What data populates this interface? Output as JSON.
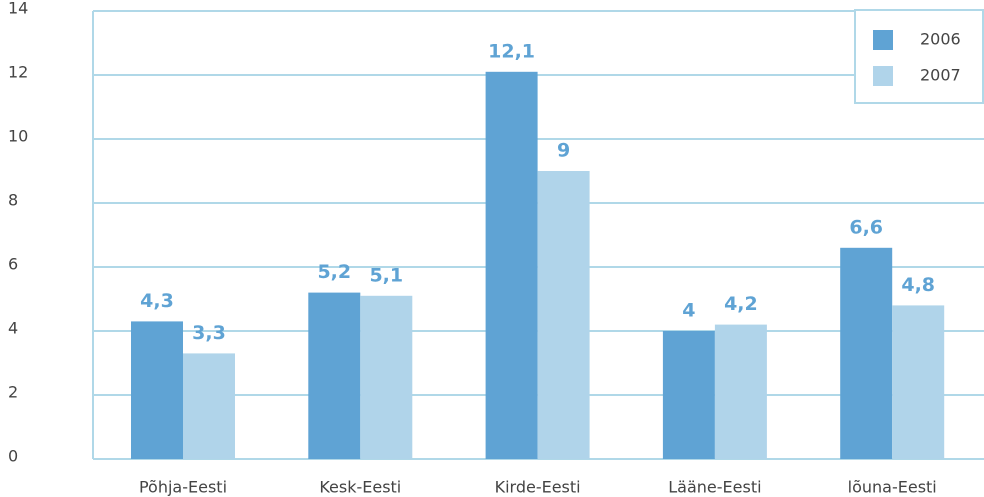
{
  "chart_data": {
    "type": "bar",
    "categories": [
      "Põhja-Eesti",
      "Kesk-Eesti",
      "Kirde-Eesti",
      "Lääne-Eesti",
      "lõuna-Eesti"
    ],
    "series": [
      {
        "name": "2006",
        "color": "#5fa3d4",
        "values": [
          4.3,
          5.2,
          12.1,
          4,
          6.6
        ],
        "value_labels": [
          "4,3",
          "5,2",
          "12,1",
          "4",
          "6,6"
        ]
      },
      {
        "name": "2007",
        "color": "#b0d4ea",
        "values": [
          3.3,
          5.1,
          9,
          4.2,
          4.8
        ],
        "value_labels": [
          "3,3",
          "5,1",
          "9",
          "4,2",
          "4,8"
        ]
      }
    ],
    "ylim": [
      0,
      14
    ],
    "yticks": [
      0,
      2,
      4,
      6,
      8,
      10,
      12,
      14
    ],
    "grid": true,
    "legend": "top-right"
  }
}
